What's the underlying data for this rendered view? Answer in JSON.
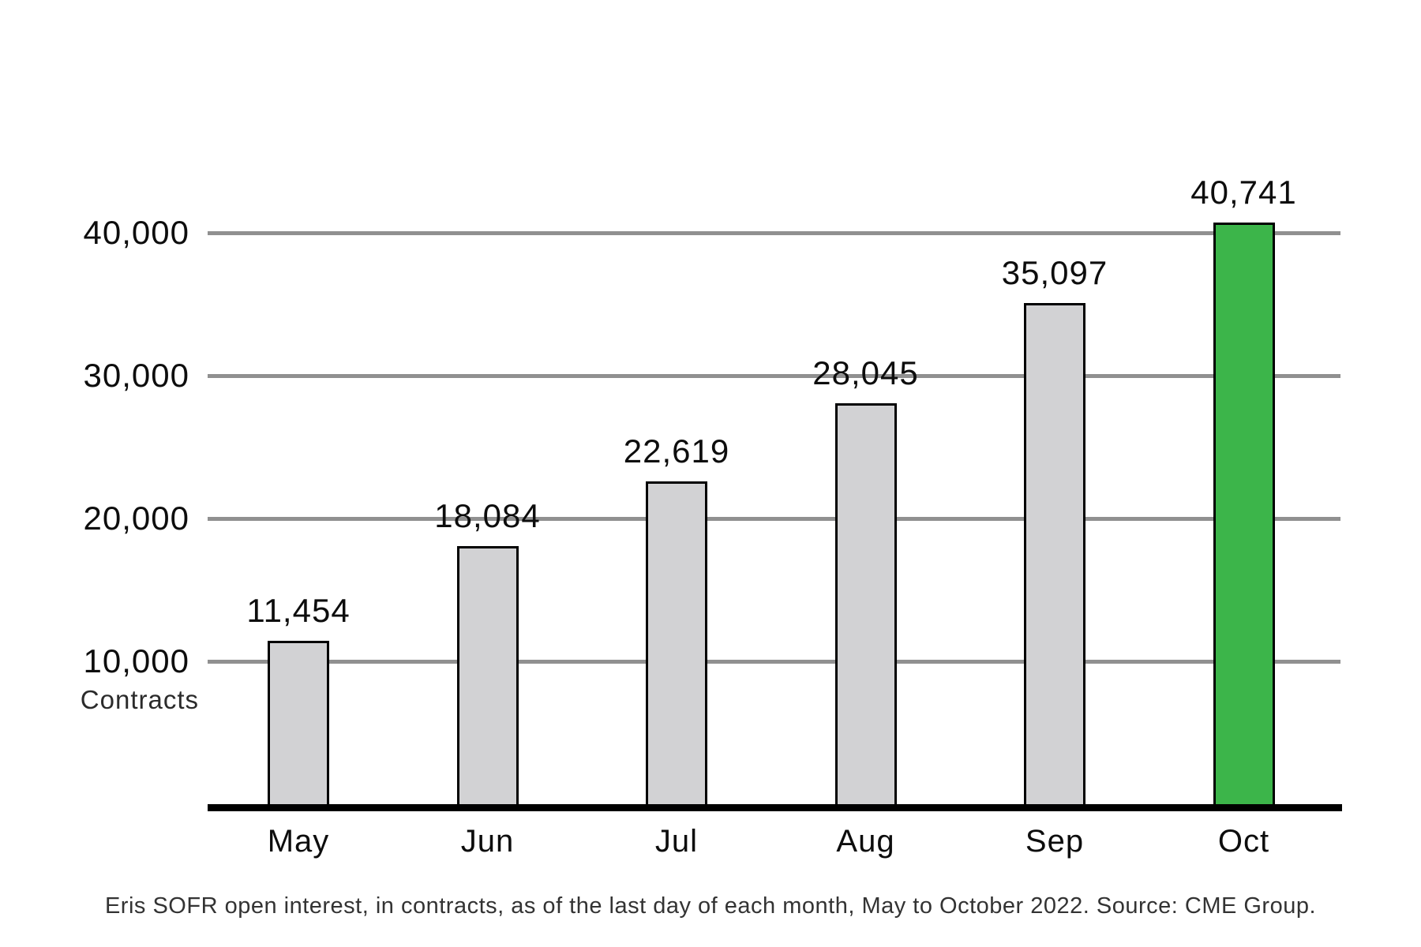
{
  "chart_data": {
    "type": "bar",
    "categories": [
      "May",
      "Jun",
      "Jul",
      "Aug",
      "Sep",
      "Oct"
    ],
    "values": [
      11454,
      18084,
      22619,
      28045,
      35097,
      40741
    ],
    "value_labels": [
      "11,454",
      "18,084",
      "22,619",
      "28,045",
      "35,097",
      "40,741"
    ],
    "title": "",
    "xlabel": "",
    "ylabel": "Contracts",
    "ylim": [
      0,
      45000
    ],
    "yticks": [
      10000,
      20000,
      30000,
      40000
    ],
    "ytick_labels": [
      "10,000",
      "20,000",
      "30,000",
      "40,000"
    ],
    "grid": true,
    "legend_position": "none",
    "highlight_index": 5,
    "colors": {
      "bar_default": "#d2d2d4",
      "bar_highlight": "#3cb54a",
      "bar_border": "#000000",
      "gridline": "#909090",
      "axis": "#000000",
      "text": "#0d0d0d"
    }
  },
  "caption": "Eris SOFR open interest, in contracts, as of the last day of each month, May to October 2022. Source: CME Group."
}
